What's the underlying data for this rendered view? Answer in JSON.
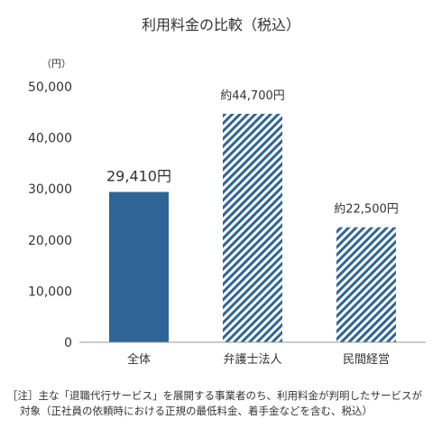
{
  "chart_data": {
    "type": "bar",
    "title": "利用料金の比較（税込）",
    "unit_label": "（円）",
    "categories": [
      "全体",
      "弁護士法人",
      "民間経営"
    ],
    "values": [
      29410,
      44700,
      22500
    ],
    "value_labels": [
      "29,410円",
      "約44,700円",
      "約22,500円"
    ],
    "bar_styles": [
      "solid",
      "hatched",
      "hatched"
    ],
    "ylim": [
      0,
      50000
    ],
    "yticks": [
      0,
      10000,
      20000,
      30000,
      40000,
      50000
    ],
    "ytick_labels": [
      "0",
      "10,000",
      "20,000",
      "30,000",
      "40,000",
      "50,000"
    ],
    "grid": false,
    "colors": {
      "bar": "#2e6596",
      "hatch": "#2e6596",
      "axis": "#999999",
      "text": "#333333"
    }
  },
  "notes": {
    "line1": "［注］主な「退職代行サービス」を展開する事業者のち、利用料金が判明したサービスが",
    "line2": "対象（正社員の依頼時における正規の最低料金、着手金などを含む、税込）"
  }
}
